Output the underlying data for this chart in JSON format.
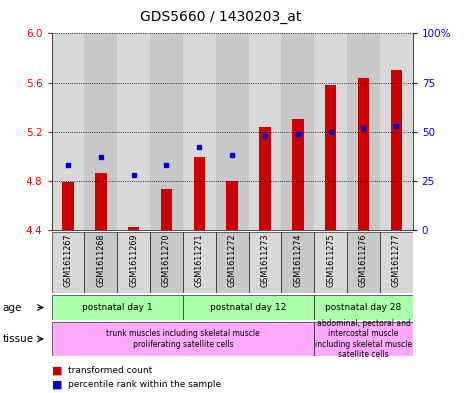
{
  "title": "GDS5660 / 1430203_at",
  "samples": [
    "GSM1611267",
    "GSM1611268",
    "GSM1611269",
    "GSM1611270",
    "GSM1611271",
    "GSM1611272",
    "GSM1611273",
    "GSM1611274",
    "GSM1611275",
    "GSM1611276",
    "GSM1611277"
  ],
  "transformed_count": [
    4.79,
    4.86,
    4.42,
    4.73,
    4.99,
    4.8,
    5.24,
    5.3,
    5.58,
    5.64,
    5.7
  ],
  "percentile_rank": [
    33,
    37,
    28,
    33,
    42,
    38,
    48,
    49,
    50,
    52,
    53
  ],
  "bar_bottom": 4.4,
  "ylim_left": [
    4.4,
    6.0
  ],
  "ylim_right": [
    0,
    100
  ],
  "yticks_left": [
    4.4,
    4.8,
    5.2,
    5.6,
    6.0
  ],
  "yticks_right": [
    0,
    25,
    50,
    75,
    100
  ],
  "bar_color": "#cc0000",
  "dot_color": "#0000cc",
  "plot_bg": "#d8d8d8",
  "col_bg_even": "#c8c8c8",
  "col_bg_odd": "#d8d8d8",
  "age_color": "#aaffaa",
  "tissue_color": "#ffaaff",
  "age_groups": [
    {
      "label": "postnatal day 1",
      "start": 0,
      "end": 4
    },
    {
      "label": "postnatal day 12",
      "start": 4,
      "end": 8
    },
    {
      "label": "postnatal day 28",
      "start": 8,
      "end": 11
    }
  ],
  "tissue_groups": [
    {
      "label": "trunk muscles including skeletal muscle\nproliferating satellite cells",
      "start": 0,
      "end": 8
    },
    {
      "label": "abdominal, pectoral and\nintercostal muscle\nincluding skeletal muscle\nsatellite cells",
      "start": 8,
      "end": 11
    }
  ],
  "legend_items": [
    {
      "label": "transformed count",
      "color": "#cc0000"
    },
    {
      "label": "percentile rank within the sample",
      "color": "#0000cc"
    }
  ]
}
